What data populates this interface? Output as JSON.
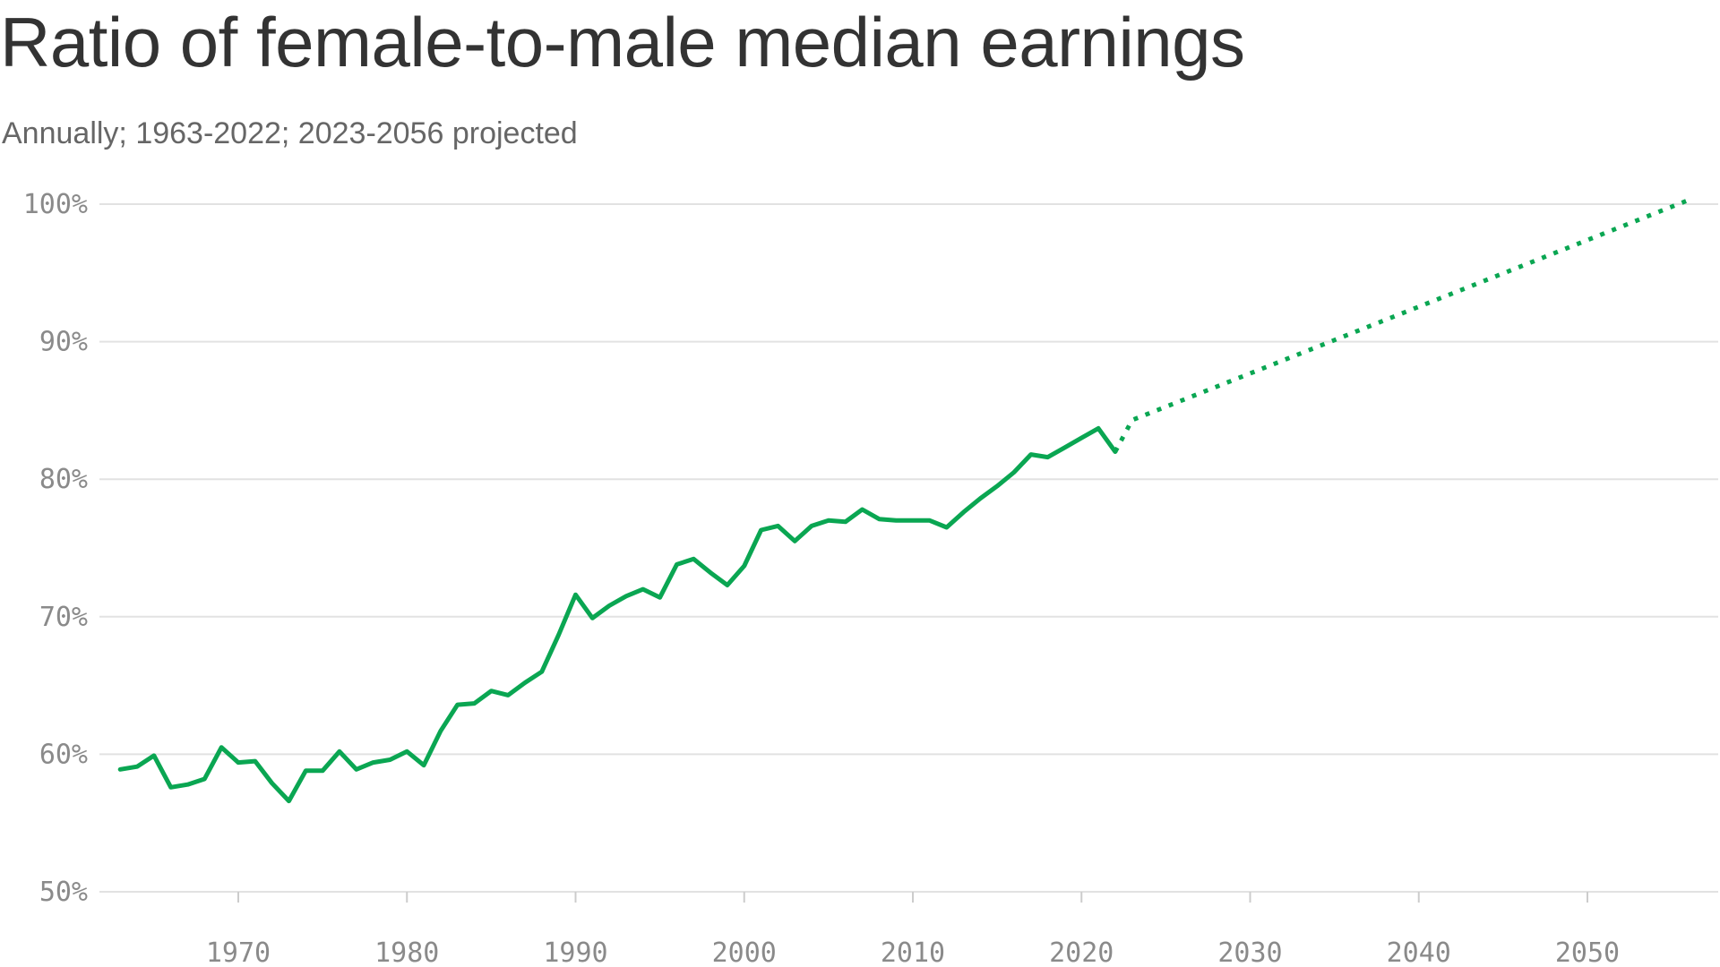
{
  "chart_data": {
    "type": "line",
    "title": "Ratio of female-to-male median earnings",
    "subtitle": "Annually; 1963-2022; 2023-2056 projected",
    "xlabel": "",
    "ylabel": "",
    "xlim": [
      1962,
      2057
    ],
    "ylim": [
      50,
      100
    ],
    "grid": true,
    "yticks": [
      {
        "value": 100,
        "label": "100%"
      },
      {
        "value": 90,
        "label": "90%"
      },
      {
        "value": 80,
        "label": "80%"
      },
      {
        "value": 70,
        "label": "70%"
      },
      {
        "value": 60,
        "label": "60%"
      },
      {
        "value": 50,
        "label": "50%"
      }
    ],
    "xticks": [
      {
        "value": 1970,
        "label": "1970"
      },
      {
        "value": 1980,
        "label": "1980"
      },
      {
        "value": 1990,
        "label": "1990"
      },
      {
        "value": 2000,
        "label": "2000"
      },
      {
        "value": 2010,
        "label": "2010"
      },
      {
        "value": 2020,
        "label": "2020"
      },
      {
        "value": 2030,
        "label": "2030"
      },
      {
        "value": 2040,
        "label": "2040"
      },
      {
        "value": 2050,
        "label": "2050"
      }
    ],
    "series": [
      {
        "style": "solid",
        "color": "#0aa652",
        "x": [
          1963,
          1964,
          1965,
          1966,
          1967,
          1968,
          1969,
          1970,
          1971,
          1972,
          1973,
          1974,
          1975,
          1976,
          1977,
          1978,
          1979,
          1980,
          1981,
          1982,
          1983,
          1984,
          1985,
          1986,
          1987,
          1988,
          1989,
          1990,
          1991,
          1992,
          1993,
          1994,
          1995,
          1996,
          1997,
          1998,
          1999,
          2000,
          2001,
          2002,
          2003,
          2004,
          2005,
          2006,
          2007,
          2008,
          2009,
          2010,
          2011,
          2012,
          2013,
          2014,
          2015,
          2016,
          2017,
          2018,
          2019,
          2020,
          2021,
          2022
        ],
        "y": [
          58.9,
          59.1,
          59.9,
          57.6,
          57.8,
          58.2,
          60.5,
          59.4,
          59.5,
          57.9,
          56.6,
          58.8,
          58.8,
          60.2,
          58.9,
          59.4,
          59.6,
          60.2,
          59.2,
          61.7,
          63.6,
          63.7,
          64.6,
          64.3,
          65.2,
          66.0,
          68.7,
          71.6,
          69.9,
          70.8,
          71.5,
          72.0,
          71.4,
          73.8,
          74.2,
          73.2,
          72.3,
          73.7,
          76.3,
          76.6,
          75.5,
          76.6,
          77.0,
          76.9,
          77.8,
          77.1,
          77.0,
          77.0,
          77.0,
          76.5,
          77.6,
          78.6,
          79.5,
          80.5,
          81.8,
          81.6,
          82.3,
          83.0,
          83.7,
          82.0
        ]
      },
      {
        "style": "dotted",
        "color": "#0aa652",
        "x": [
          2022,
          2023,
          2056
        ],
        "y": [
          82.0,
          84.3,
          100.3
        ]
      }
    ]
  }
}
